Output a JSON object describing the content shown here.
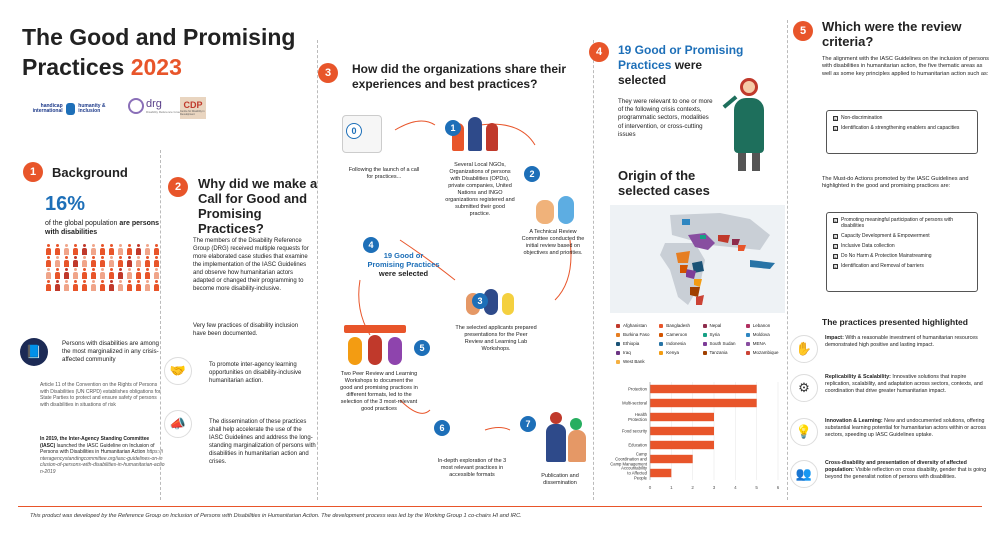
{
  "title": {
    "line1": "The Good and Promising",
    "line2": "Practices",
    "year": "2023"
  },
  "logos": {
    "hi": "handicap international",
    "hi2": "humanity & inclusion",
    "drg": "drg",
    "drg_sub": "Disability Reference Group",
    "cdp": "CDP",
    "cdp_sub": "Centre for Disability in Development"
  },
  "section1": {
    "num": "1",
    "title": "Background",
    "stat": "16%",
    "stat_text": "of the global population",
    "stat_are": "are",
    "stat_bold": "persons with disabilities",
    "marginalized": "Persons with disabilities are among the most marginalized in any crisis-affected community",
    "crpd": "Article 11 of the Convention on the Rights of Persons with Disabilities (UN CRPD) establishes obligations for State Parties to protect and ensure safety of persons with disabilities in situations of risk",
    "iasc_bold": "In 2019, the Inter-Agency Standing Committee (IASC)",
    "iasc_text": "launched the IASC Guideline on Inclusion of Persons with Disabilities in Humanitarian Action",
    "iasc_link": "https://interagencystandingcommittee.org/iasc-guidelines-on-inclusion-of-persons-with-disabilities-in-humanitarian-action-2019"
  },
  "section2": {
    "num": "2",
    "title": "Why did we make a Call for Good and Promising Practices?",
    "p1": "The members of the Disability Reference Group (DRG) received multiple requests for more elaborated case studies that examine the implementation of the IASC Guidelines and observe how humanitarian actors adapted or changed their programming to become more disability-inclusive.",
    "p2": "Very few practices of disability inclusion have been documented.",
    "p3": "To promote inter-agency learning opportunities on disability-inclusive humanitarian action.",
    "p4": "The dissemination of these practices shall help accelerate the use of the IASC Guidelines and address the long-standing marginalization of persons with disabilities in humanitarian action and crises."
  },
  "section3": {
    "num": "3",
    "title": "How did the organizations share their experiences and best practices?",
    "steps": [
      {
        "n": "0",
        "text": "Following the launch of a call for practices..."
      },
      {
        "n": "1",
        "text": "Several Local NGOs, Organizations of persons with Disabilities (OPDs), private companies, United Nations and INGO organizations registered and submitted their good practice."
      },
      {
        "n": "2",
        "text": "A Technical Review Committee conducted the initial review based on objectives and priorities."
      },
      {
        "n": "3",
        "text": "The selected applicants prepared presentations for the Peer Review and Learning Lab Workshops."
      },
      {
        "n": "4",
        "text": "19 Good or Promising Practices were selected"
      },
      {
        "n": "5",
        "text": "Two Peer Review and Learning Workshops to document the good and promising practices in different formats, led to the selection of the 3 most-relevant good practices"
      },
      {
        "n": "6",
        "text": "In-depth exploration of the 3 most relevant practices in accessible formats"
      },
      {
        "n": "7",
        "text": "Publication and dissemination"
      }
    ],
    "step4_a": "19 Good or",
    "step4_b": "Promising Practices",
    "step4_c": "were selected"
  },
  "section4": {
    "num": "4",
    "title_a": "19 Good or Promising",
    "title_b": "Practices",
    "title_c": "were",
    "title_d": "selected",
    "text": "They were relevant to one or more of the following crisis contexts, programmatic sectors, modalities of intervention, or cross-cutting issues",
    "origin_title": "Origin of the selected cases",
    "legend": [
      {
        "name": "Afghanistan",
        "color": "#c0392b"
      },
      {
        "name": "Bangladesh",
        "color": "#e8552a"
      },
      {
        "name": "Nepal",
        "color": "#8e2c4c"
      },
      {
        "name": "Lebanon",
        "color": "#b03060"
      },
      {
        "name": "Burkina Faso",
        "color": "#e67e22"
      },
      {
        "name": "Cameroon",
        "color": "#d35400"
      },
      {
        "name": "Syria",
        "color": "#16a085"
      },
      {
        "name": "Moldova",
        "color": "#2e86c1"
      },
      {
        "name": "Ethiopia",
        "color": "#1a5276"
      },
      {
        "name": "Indonesia",
        "color": "#2874a6"
      },
      {
        "name": "South Sudan",
        "color": "#7d3c98"
      },
      {
        "name": "MENA",
        "color": "#884ea0"
      },
      {
        "name": "Iraq",
        "color": "#6c3483"
      },
      {
        "name": "Kenya",
        "color": "#f39c12"
      },
      {
        "name": "Tanzania",
        "color": "#a04000"
      },
      {
        "name": "Mozambique",
        "color": "#cb4335"
      },
      {
        "name": "West Bank",
        "color": "#f5b041"
      }
    ]
  },
  "chart_data": {
    "type": "bar",
    "orientation": "horizontal",
    "categories": [
      "Protection",
      "Multi-sectoral",
      "Health Protection",
      "Food security",
      "Education",
      "Camp Coordination and Camp Management",
      "Accountability to Affected People"
    ],
    "values": [
      5,
      5,
      3,
      3,
      3,
      2,
      1
    ],
    "xlim": [
      0,
      6
    ],
    "xticks": [
      "0",
      "1",
      "2",
      "3",
      "4",
      "5",
      "6"
    ],
    "color": "#e8552a"
  },
  "section5": {
    "num": "5",
    "title": "Which were the review criteria?",
    "intro1": "The alignment with the IASC Guidelines on the inclusion of persons with disabilities in humanitarian action, the five thematic areas as well as some key principles applied to humanitarian action such as:",
    "list1": [
      "Non-discrimination",
      "Identification & strengthening enablers and capacities"
    ],
    "intro2": "The Must-do Actions promoted by the IASC Guidelines and highlighted in the good and promising practices are:",
    "list2": [
      "Promoting meaningful participation of persons with disabilities",
      "Capacity Development & Empowerment",
      "Inclusive Data collection",
      "Do No Harm & Protection Mainstreaming",
      "Identification and Removal of barriers"
    ],
    "check": "☑",
    "hl_title": "The practices presented highlighted",
    "highlights": [
      {
        "bold": "Impact:",
        "text": "With a reasonable investment of humanitarian resources demonstrated high positive and lasting impact."
      },
      {
        "bold": "Replicability & Scalability:",
        "text": "Innovative solutions that inspire replication, scalability, and adaptation across sectors, contexts, and coordination that drive greater humanitarian impact."
      },
      {
        "bold": "Innovation & Learning:",
        "text": "New and undocumented solutions, offering substantial learning potential for humanitarian actors within or across sectors, speeding up IASC Guidelines uptake."
      },
      {
        "bold": "Cross-disability and presentation of diversity of affected population:",
        "text": "Visible reflection on cross disability, gender that is going beyond the generalist notion of persons with disabilities."
      }
    ]
  },
  "footer": "This product was developed by the Reference Group on Inclusion of Persons with Disabilities in Humanitarian Action. The development process was led by the Working Group 1 co-chairs HI and IRC.",
  "icons": {
    "book": "📘",
    "handshake": "🤝",
    "megaphone": "📣",
    "hand": "✋",
    "gears": "⚙",
    "bulb": "💡",
    "people": "👥"
  }
}
